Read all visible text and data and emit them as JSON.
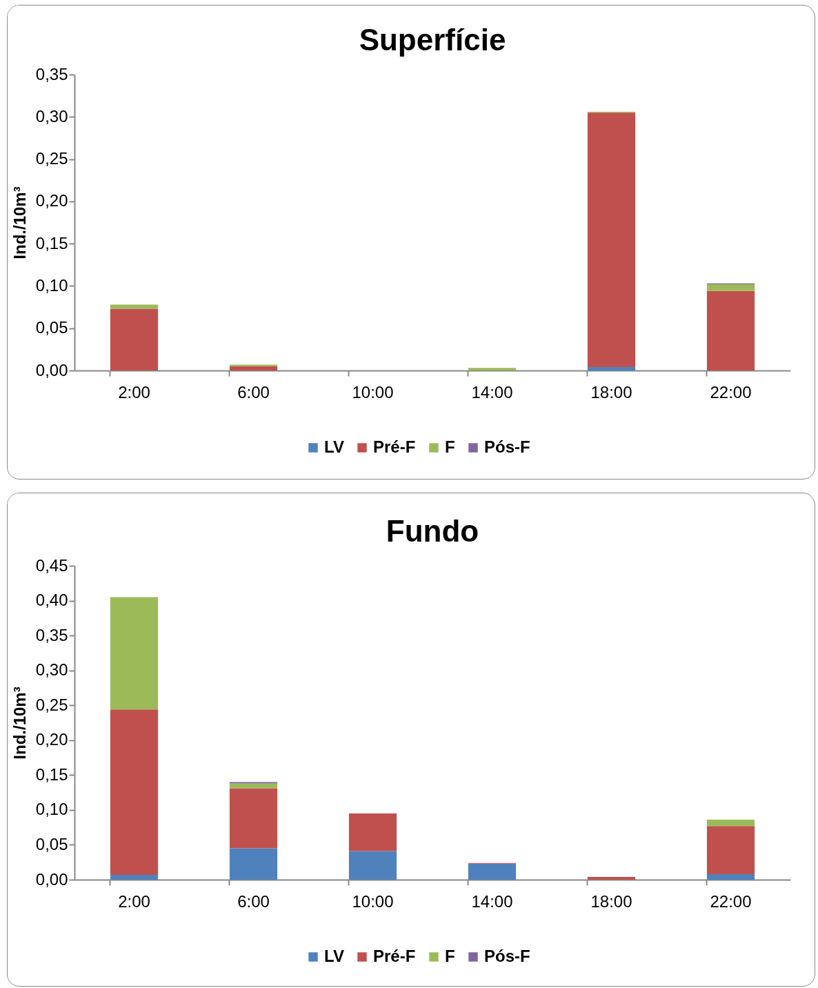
{
  "chart_data": [
    {
      "type": "bar",
      "title": "Superfície",
      "ylabel": "Ind./10m³",
      "stacked": true,
      "legend": "bottom",
      "categories": [
        "2:00",
        "6:00",
        "10:00",
        "14:00",
        "18:00",
        "22:00"
      ],
      "series": [
        {
          "name": "LV",
          "color": "#4f81bd",
          "values": [
            0,
            0,
            0,
            0,
            0.004,
            0
          ]
        },
        {
          "name": "Pré-F",
          "color": "#c0504d",
          "values": [
            0.073,
            0.005,
            0,
            0,
            0.301,
            0.094
          ]
        },
        {
          "name": "F",
          "color": "#9bbb59",
          "values": [
            0.005,
            0.002,
            0,
            0.003,
            0.001,
            0.008
          ]
        },
        {
          "name": "Pós-F",
          "color": "#8064a2",
          "values": [
            0,
            0,
            0,
            0,
            0,
            0.001
          ]
        }
      ],
      "ylim": [
        0,
        0.35
      ],
      "yticks": [
        {
          "value": 0,
          "label": "0,00"
        },
        {
          "value": 0.05,
          "label": "0,05"
        },
        {
          "value": 0.1,
          "label": "0,10"
        },
        {
          "value": 0.15,
          "label": "0,15"
        },
        {
          "value": 0.2,
          "label": "0,20"
        },
        {
          "value": 0.25,
          "label": "0,25"
        },
        {
          "value": 0.3,
          "label": "0,30"
        },
        {
          "value": 0.35,
          "label": "0,35"
        }
      ]
    },
    {
      "type": "bar",
      "title": "Fundo",
      "ylabel": "Ind./10m³",
      "stacked": true,
      "legend": "bottom",
      "categories": [
        "2:00",
        "6:00",
        "10:00",
        "14:00",
        "18:00",
        "22:00"
      ],
      "series": [
        {
          "name": "LV",
          "color": "#4f81bd",
          "values": [
            0.007,
            0.045,
            0.041,
            0.023,
            0,
            0.008
          ]
        },
        {
          "name": "Pré-F",
          "color": "#c0504d",
          "values": [
            0.237,
            0.086,
            0.054,
            0.001,
            0.004,
            0.069
          ]
        },
        {
          "name": "F",
          "color": "#9bbb59",
          "values": [
            0.161,
            0.007,
            0,
            0,
            0,
            0.009
          ]
        },
        {
          "name": "Pós-F",
          "color": "#8064a2",
          "values": [
            0,
            0.002,
            0,
            0,
            0,
            0
          ]
        }
      ],
      "ylim": [
        0,
        0.45
      ],
      "yticks": [
        {
          "value": 0,
          "label": "0,00"
        },
        {
          "value": 0.05,
          "label": "0,05"
        },
        {
          "value": 0.1,
          "label": "0,10"
        },
        {
          "value": 0.15,
          "label": "0,15"
        },
        {
          "value": 0.2,
          "label": "0,20"
        },
        {
          "value": 0.25,
          "label": "0,25"
        },
        {
          "value": 0.3,
          "label": "0,30"
        },
        {
          "value": 0.35,
          "label": "0,35"
        },
        {
          "value": 0.4,
          "label": "0,40"
        },
        {
          "value": 0.45,
          "label": "0,45"
        }
      ]
    }
  ]
}
